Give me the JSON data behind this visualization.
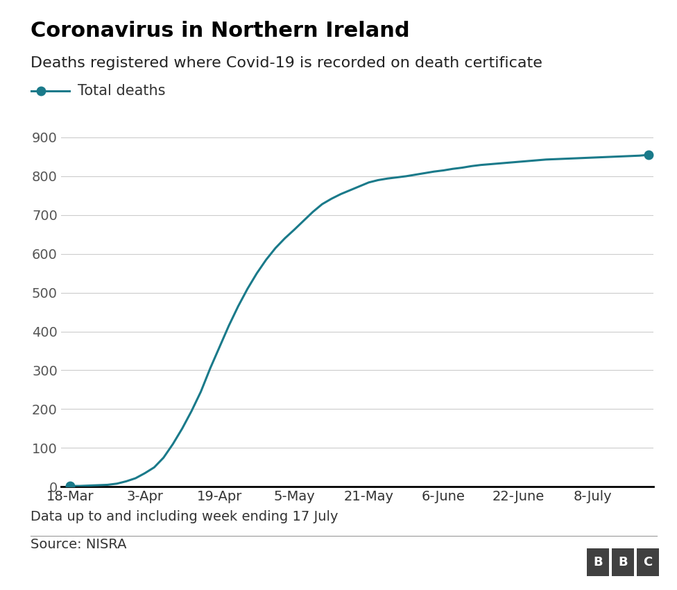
{
  "title": "Coronavirus in Northern Ireland",
  "subtitle": "Deaths registered where Covid-19 is recorded on death certificate",
  "legend_label": "Total deaths",
  "footnote": "Data up to and including week ending 17 July",
  "source": "Source: NISRA",
  "line_color": "#1a7a8a",
  "marker_color": "#1a7a8a",
  "background_color": "#ffffff",
  "ylim": [
    0,
    950
  ],
  "yticks": [
    0,
    100,
    200,
    300,
    400,
    500,
    600,
    700,
    800,
    900
  ],
  "xtick_labels": [
    "18-Mar",
    "3-Apr",
    "19-Apr",
    "5-May",
    "21-May",
    "6-June",
    "22-June",
    "8-July"
  ],
  "x_tick_positions": [
    0,
    16,
    32,
    48,
    64,
    80,
    96,
    112
  ],
  "x_max": 125,
  "x_data": [
    0,
    2,
    4,
    6,
    8,
    10,
    12,
    14,
    16,
    18,
    20,
    22,
    24,
    26,
    28,
    30,
    32,
    34,
    36,
    38,
    40,
    42,
    44,
    46,
    48,
    50,
    52,
    54,
    56,
    58,
    60,
    62,
    64,
    66,
    68,
    70,
    72,
    74,
    76,
    78,
    80,
    82,
    84,
    86,
    88,
    90,
    92,
    94,
    96,
    98,
    100,
    102,
    104,
    106,
    108,
    110,
    112,
    114,
    116,
    118,
    120,
    122,
    124
  ],
  "y_data": [
    2,
    2,
    3,
    4,
    5,
    8,
    14,
    22,
    35,
    50,
    75,
    110,
    150,
    195,
    245,
    305,
    360,
    415,
    465,
    510,
    550,
    585,
    615,
    640,
    662,
    685,
    708,
    728,
    742,
    754,
    764,
    774,
    784,
    790,
    794,
    797,
    800,
    804,
    808,
    812,
    815,
    819,
    822,
    826,
    829,
    831,
    833,
    835,
    837,
    839,
    841,
    843,
    844,
    845,
    846,
    847,
    848,
    849,
    850,
    851,
    852,
    853,
    855
  ],
  "title_fontsize": 22,
  "subtitle_fontsize": 16,
  "tick_fontsize": 14,
  "legend_fontsize": 15,
  "footnote_fontsize": 14,
  "source_fontsize": 14,
  "grid_color": "#cccccc",
  "axis_line_color": "#000000",
  "bbc_box_color": "#404040"
}
